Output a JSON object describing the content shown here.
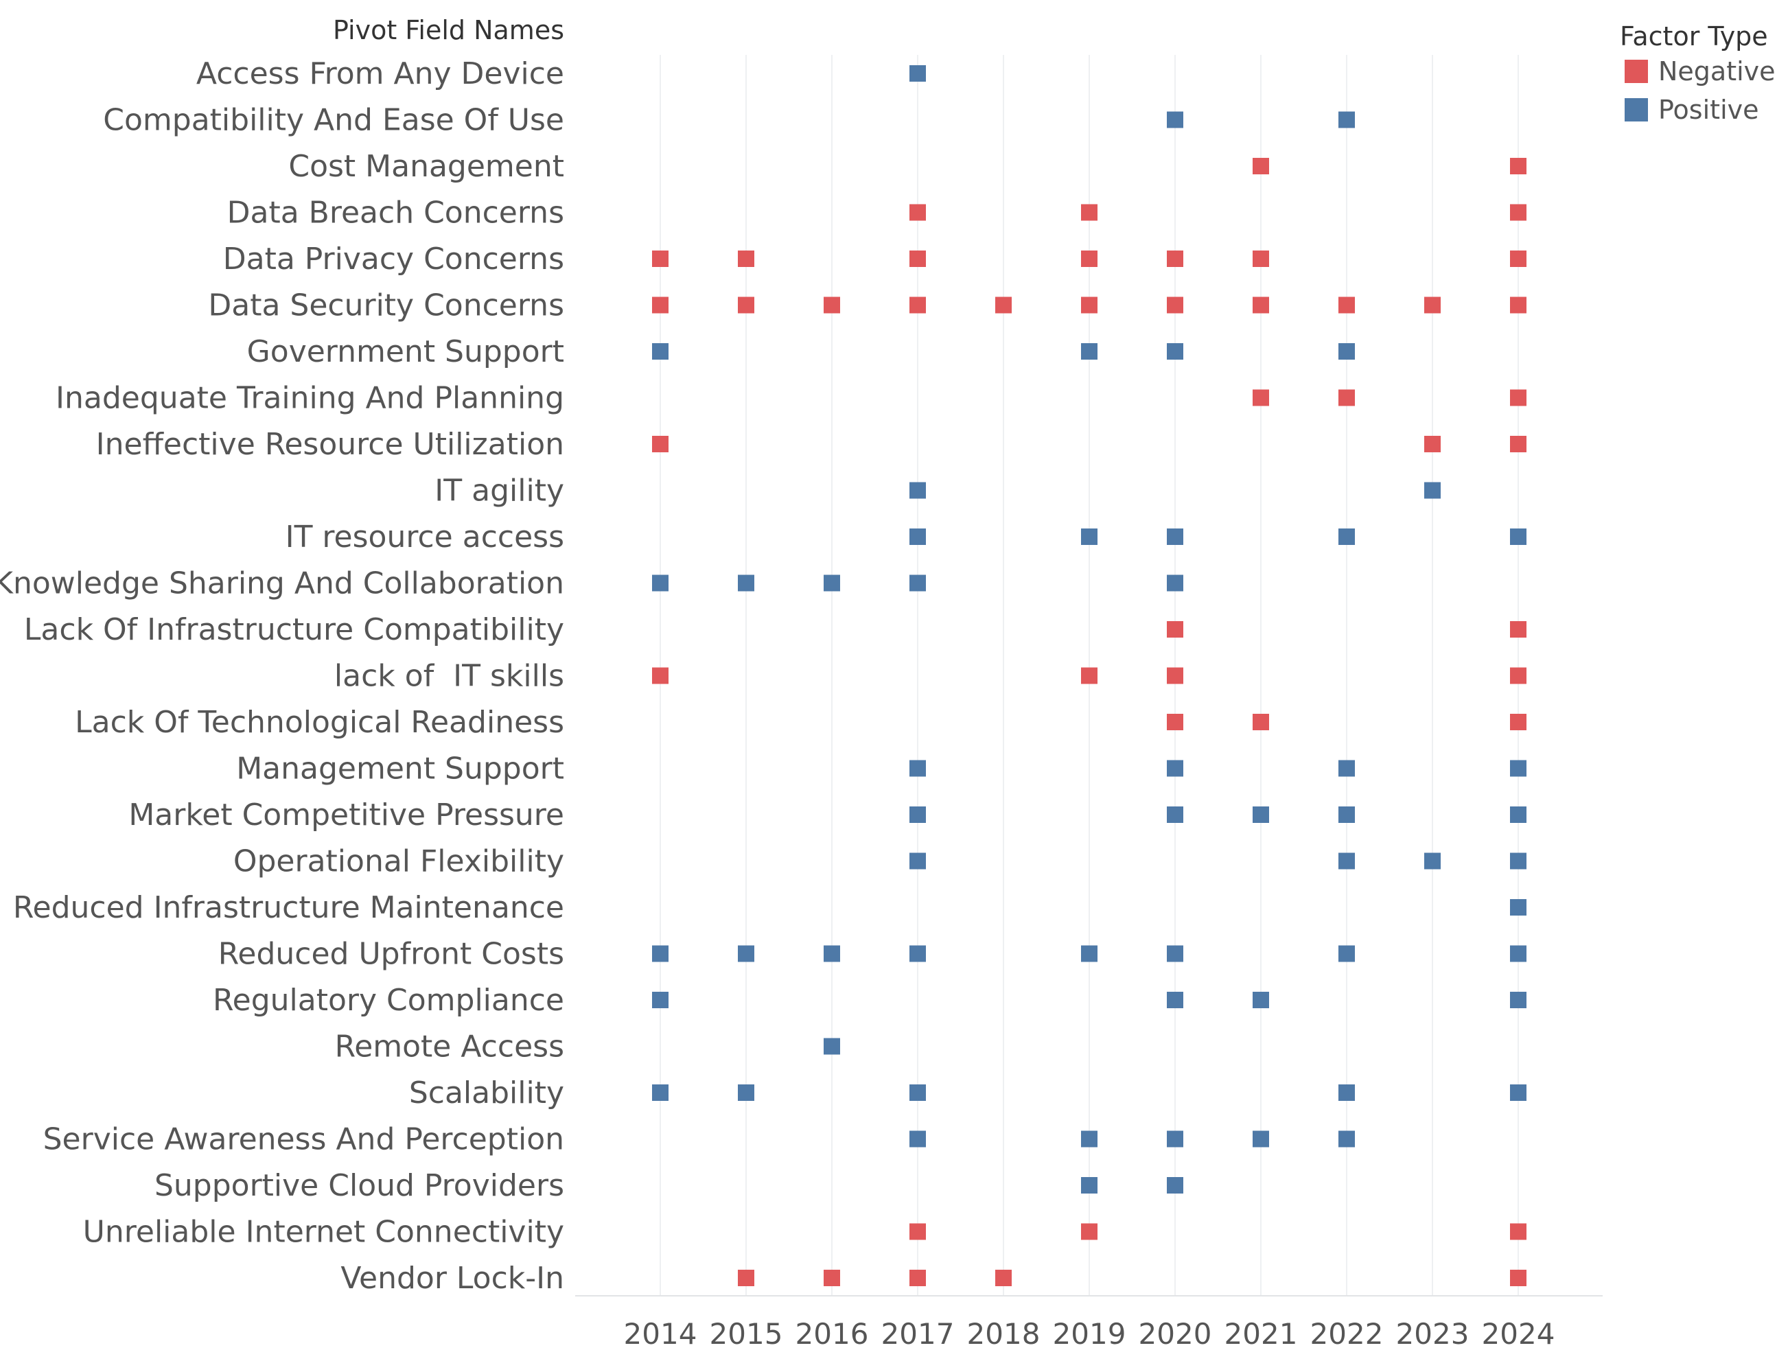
{
  "chart_data": {
    "type": "scatter",
    "title": "",
    "row_header": "Pivot Field Names",
    "legend": {
      "title": "Factor Type",
      "position": "top-right",
      "entries": [
        {
          "name": "Negative",
          "color": "#e05759"
        },
        {
          "name": "Positive",
          "color": "#4e79a7"
        }
      ]
    },
    "x": [
      2014,
      2015,
      2016,
      2017,
      2018,
      2019,
      2020,
      2021,
      2022,
      2023,
      2024
    ],
    "xlim": [
      2013,
      2025
    ],
    "grid": true,
    "rows": [
      {
        "name": "Access From Any Device",
        "type": "Positive",
        "years": [
          2017
        ]
      },
      {
        "name": "Compatibility And Ease Of Use",
        "type": "Positive",
        "years": [
          2020,
          2022
        ]
      },
      {
        "name": "Cost Management",
        "type": "Negative",
        "years": [
          2021,
          2024
        ]
      },
      {
        "name": "Data Breach Concerns",
        "type": "Negative",
        "years": [
          2017,
          2019,
          2024
        ]
      },
      {
        "name": "Data Privacy Concerns",
        "type": "Negative",
        "years": [
          2014,
          2015,
          2017,
          2019,
          2020,
          2021,
          2024
        ]
      },
      {
        "name": "Data Security Concerns",
        "type": "Negative",
        "years": [
          2014,
          2015,
          2016,
          2017,
          2018,
          2019,
          2020,
          2021,
          2022,
          2023,
          2024
        ]
      },
      {
        "name": "Government Support",
        "type": "Positive",
        "years": [
          2014,
          2019,
          2020,
          2022
        ]
      },
      {
        "name": "Inadequate Training And Planning",
        "type": "Negative",
        "years": [
          2021,
          2022,
          2024
        ]
      },
      {
        "name": "Ineffective Resource Utilization",
        "type": "Negative",
        "years": [
          2014,
          2023,
          2024
        ]
      },
      {
        "name": "IT agility",
        "type": "Positive",
        "years": [
          2017,
          2023
        ]
      },
      {
        "name": "IT resource access",
        "type": "Positive",
        "years": [
          2017,
          2019,
          2020,
          2022,
          2024
        ]
      },
      {
        "name": "Knowledge Sharing And Collaboration",
        "type": "Positive",
        "years": [
          2014,
          2015,
          2016,
          2017,
          2020
        ]
      },
      {
        "name": "Lack Of Infrastructure Compatibility",
        "type": "Negative",
        "years": [
          2020,
          2024
        ]
      },
      {
        "name": "lack of  IT skills",
        "type": "Negative",
        "years": [
          2014,
          2019,
          2020,
          2024
        ]
      },
      {
        "name": "Lack Of Technological Readiness",
        "type": "Negative",
        "years": [
          2020,
          2021,
          2024
        ]
      },
      {
        "name": "Management Support",
        "type": "Positive",
        "years": [
          2017,
          2020,
          2022,
          2024
        ]
      },
      {
        "name": "Market Competitive Pressure",
        "type": "Positive",
        "years": [
          2017,
          2020,
          2021,
          2022,
          2024
        ]
      },
      {
        "name": "Operational Flexibility",
        "type": "Positive",
        "years": [
          2017,
          2022,
          2023,
          2024
        ]
      },
      {
        "name": "Reduced Infrastructure Maintenance",
        "type": "Positive",
        "years": [
          2024
        ]
      },
      {
        "name": "Reduced Upfront Costs",
        "type": "Positive",
        "years": [
          2014,
          2015,
          2016,
          2017,
          2019,
          2020,
          2022,
          2024
        ]
      },
      {
        "name": "Regulatory Compliance",
        "type": "Positive",
        "years": [
          2014,
          2020,
          2021,
          2024
        ]
      },
      {
        "name": "Remote Access",
        "type": "Positive",
        "years": [
          2016
        ]
      },
      {
        "name": "Scalability",
        "type": "Positive",
        "years": [
          2014,
          2015,
          2017,
          2022,
          2024
        ]
      },
      {
        "name": "Service Awareness And Perception",
        "type": "Positive",
        "years": [
          2017,
          2019,
          2020,
          2021,
          2022
        ]
      },
      {
        "name": "Supportive Cloud Providers",
        "type": "Positive",
        "years": [
          2019,
          2020
        ]
      },
      {
        "name": "Unreliable Internet Connectivity",
        "type": "Negative",
        "years": [
          2017,
          2019,
          2024
        ]
      },
      {
        "name": "Vendor Lock-In",
        "type": "Negative",
        "years": [
          2015,
          2016,
          2017,
          2018,
          2024
        ]
      }
    ]
  }
}
